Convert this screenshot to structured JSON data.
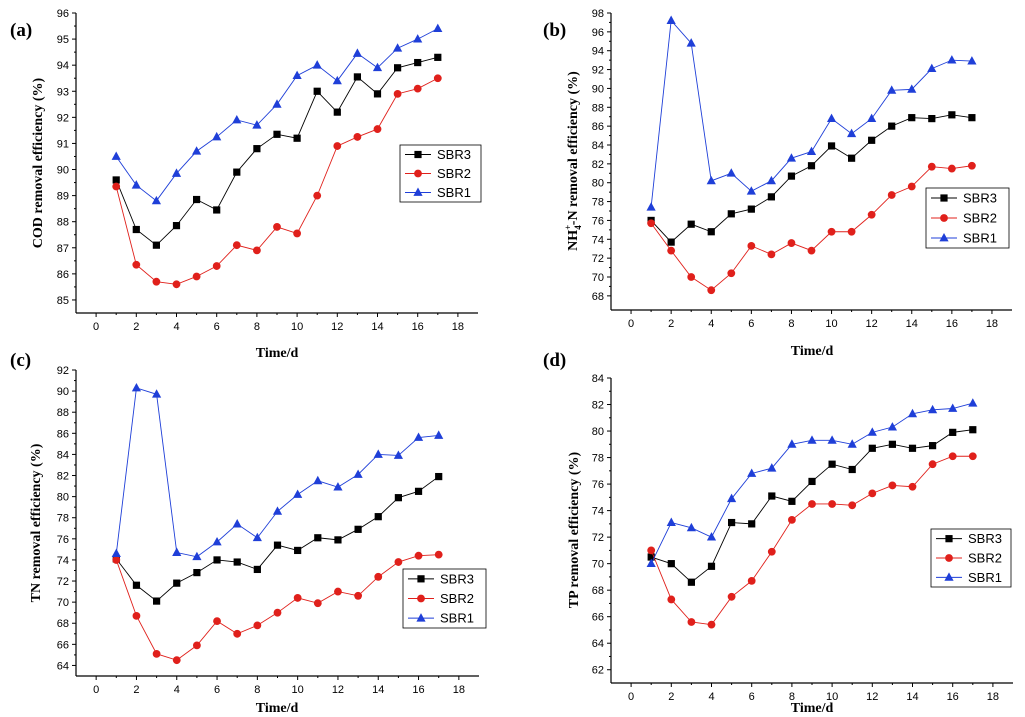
{
  "series_styles": [
    {
      "name": "SBR3",
      "marker": "square",
      "color": "#000000",
      "line": "#000000"
    },
    {
      "name": "SBR2",
      "marker": "circle",
      "color": "#e0201b",
      "line": "#e0201b"
    },
    {
      "name": "SBR1",
      "marker": "triangle",
      "color": "#1f3fd8",
      "line": "#1f3fd8"
    }
  ],
  "chart_data": [
    {
      "panel": "(a)",
      "type": "line",
      "xlabel": "Time/d",
      "ylabel": "COD removal efficiency (%)",
      "xlim": [
        -1,
        19
      ],
      "xticks": [
        0,
        2,
        4,
        6,
        8,
        10,
        12,
        14,
        16,
        18
      ],
      "ylim": [
        84.5,
        96
      ],
      "yticks": [
        85,
        86,
        87,
        88,
        89,
        90,
        91,
        92,
        93,
        94,
        95,
        96
      ],
      "legend": [
        "SBR3",
        "SBR2",
        "SBR1"
      ],
      "x": [
        1,
        2,
        3,
        4,
        5,
        6,
        7,
        8,
        9,
        10,
        11,
        12,
        13,
        14,
        15,
        16,
        17
      ],
      "series": [
        {
          "name": "SBR3",
          "values": [
            89.6,
            87.7,
            87.1,
            87.85,
            88.85,
            88.45,
            89.9,
            90.8,
            91.35,
            91.2,
            93.0,
            92.2,
            93.55,
            92.9,
            93.9,
            94.1,
            94.3
          ]
        },
        {
          "name": "SBR2",
          "values": [
            89.35,
            86.35,
            85.7,
            85.6,
            85.9,
            86.3,
            87.1,
            86.9,
            87.8,
            87.55,
            89.0,
            90.9,
            91.25,
            91.55,
            92.9,
            93.1,
            93.5
          ]
        },
        {
          "name": "SBR1",
          "values": [
            90.5,
            89.4,
            88.8,
            89.85,
            90.7,
            91.25,
            91.9,
            91.7,
            92.5,
            93.6,
            94.0,
            93.4,
            94.45,
            93.9,
            94.65,
            95.0,
            95.4
          ]
        }
      ]
    },
    {
      "panel": "(b)",
      "type": "line",
      "xlabel": "Time/d",
      "ylabel_main": "NH",
      "ylabel_sup": "+",
      "ylabel_sub": "4",
      "ylabel_rest": "-N removal efficiency (%)",
      "xlim": [
        -1,
        19
      ],
      "xticks": [
        0,
        2,
        4,
        6,
        8,
        10,
        12,
        14,
        16,
        18
      ],
      "ylim": [
        66.5,
        98
      ],
      "yticks": [
        68,
        70,
        72,
        74,
        76,
        78,
        80,
        82,
        84,
        86,
        88,
        90,
        92,
        94,
        96,
        98
      ],
      "legend": [
        "SBR3",
        "SBR2",
        "SBR1"
      ],
      "x": [
        1,
        2,
        3,
        4,
        5,
        6,
        7,
        8,
        9,
        10,
        11,
        12,
        13,
        14,
        15,
        16,
        17
      ],
      "series": [
        {
          "name": "SBR3",
          "values": [
            76.0,
            73.7,
            75.6,
            74.8,
            76.7,
            77.2,
            78.5,
            80.7,
            81.8,
            83.9,
            82.6,
            84.5,
            86.0,
            86.9,
            86.8,
            87.2,
            86.9
          ]
        },
        {
          "name": "SBR2",
          "values": [
            75.7,
            72.8,
            70.0,
            68.6,
            70.4,
            73.3,
            72.4,
            73.6,
            72.8,
            74.8,
            74.8,
            76.6,
            78.7,
            79.6,
            81.7,
            81.5,
            81.8
          ]
        },
        {
          "name": "SBR1",
          "values": [
            77.4,
            97.2,
            94.8,
            80.2,
            81.0,
            79.1,
            80.2,
            82.6,
            83.3,
            86.8,
            85.2,
            86.8,
            89.8,
            89.9,
            92.1,
            93.0,
            92.9
          ]
        }
      ]
    },
    {
      "panel": "(c)",
      "type": "line",
      "xlabel": "Time/d",
      "ylabel": "TN removal efficiency (%)",
      "xlim": [
        -1,
        19
      ],
      "xticks": [
        0,
        2,
        4,
        6,
        8,
        10,
        12,
        14,
        16,
        18
      ],
      "ylim": [
        63,
        92
      ],
      "yticks": [
        64,
        66,
        68,
        70,
        72,
        74,
        76,
        78,
        80,
        82,
        84,
        86,
        88,
        90,
        92
      ],
      "legend": [
        "SBR3",
        "SBR2",
        "SBR1"
      ],
      "x": [
        1,
        2,
        3,
        4,
        5,
        6,
        7,
        8,
        9,
        10,
        11,
        12,
        13,
        14,
        15,
        16,
        17
      ],
      "series": [
        {
          "name": "SBR3",
          "values": [
            74.1,
            71.6,
            70.1,
            71.8,
            72.8,
            74.0,
            73.8,
            73.1,
            75.4,
            74.9,
            76.1,
            75.9,
            76.9,
            78.1,
            79.9,
            80.5,
            81.9
          ]
        },
        {
          "name": "SBR2",
          "values": [
            74.0,
            68.7,
            65.1,
            64.5,
            65.9,
            68.2,
            67.0,
            67.8,
            69.0,
            70.4,
            69.9,
            71.0,
            70.6,
            72.4,
            73.8,
            74.4,
            74.5
          ]
        },
        {
          "name": "SBR1",
          "values": [
            74.6,
            90.3,
            89.7,
            74.7,
            74.3,
            75.7,
            77.4,
            76.1,
            78.6,
            80.2,
            81.5,
            80.9,
            82.1,
            84.0,
            83.9,
            85.6,
            85.8
          ]
        }
      ]
    },
    {
      "panel": "(d)",
      "type": "line",
      "xlabel": "Time/d",
      "ylabel": "TP removal efficiency (%)",
      "xlim": [
        -1,
        19
      ],
      "xticks": [
        0,
        2,
        4,
        6,
        8,
        10,
        12,
        14,
        16,
        18
      ],
      "ylim": [
        61,
        84
      ],
      "yticks": [
        62,
        64,
        66,
        68,
        70,
        72,
        74,
        76,
        78,
        80,
        82,
        84
      ],
      "legend": [
        "SBR3",
        "SBR2",
        "SBR1"
      ],
      "x": [
        1,
        2,
        3,
        4,
        5,
        6,
        7,
        8,
        9,
        10,
        11,
        12,
        13,
        14,
        15,
        16,
        17
      ],
      "series": [
        {
          "name": "SBR3",
          "values": [
            70.5,
            70.0,
            68.6,
            69.8,
            73.1,
            73.0,
            75.1,
            74.7,
            76.2,
            77.5,
            77.1,
            78.7,
            79.0,
            78.7,
            78.9,
            79.9,
            80.1
          ]
        },
        {
          "name": "SBR2",
          "values": [
            71.0,
            67.3,
            65.6,
            65.4,
            67.5,
            68.7,
            70.9,
            73.3,
            74.5,
            74.5,
            74.4,
            75.3,
            75.9,
            75.8,
            77.5,
            78.1,
            78.1
          ]
        },
        {
          "name": "SBR1",
          "values": [
            70.0,
            73.1,
            72.7,
            72.0,
            74.9,
            76.8,
            77.2,
            79.0,
            79.3,
            79.3,
            79.0,
            79.9,
            80.3,
            81.3,
            81.6,
            81.7,
            82.1
          ]
        }
      ]
    }
  ]
}
